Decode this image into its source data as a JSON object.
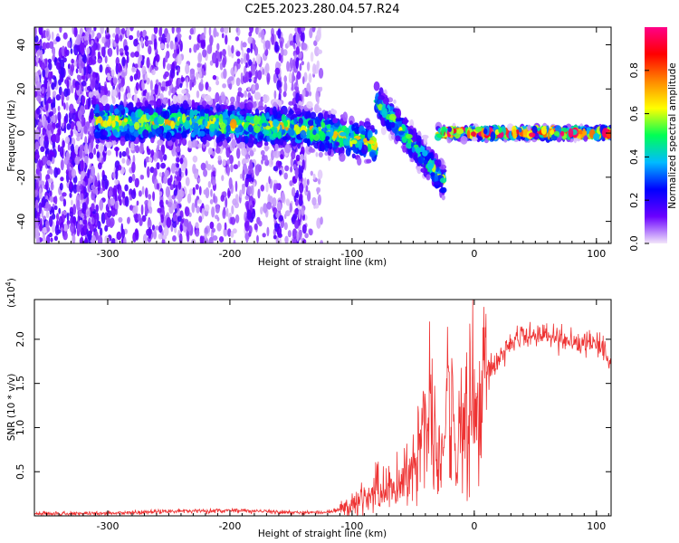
{
  "title": "C2E5.2023.280.04.57.R24",
  "chart_data": [
    {
      "type": "heatmap",
      "xlabel": "Height of straight line (km)",
      "ylabel": "Frequency (Hz)",
      "xlim": [
        -360,
        112
      ],
      "ylim": [
        -50,
        48
      ],
      "xticks": [
        -300,
        -200,
        -100,
        0,
        100
      ],
      "yticks": [
        -40,
        -20,
        0,
        20,
        40
      ],
      "colorbar": {
        "label": "Normalized spectral amplitude",
        "range": [
          0.0,
          1.0
        ],
        "ticks": [
          0.0,
          0.2,
          0.4,
          0.6,
          0.8
        ],
        "colors": [
          "#f2e6fa",
          "#6a00ff",
          "#0000ff",
          "#00bbff",
          "#00ff55",
          "#ffff00",
          "#ff8800",
          "#ff0000",
          "#ff0088"
        ]
      },
      "features": [
        {
          "x_range": [
            -360,
            -125
          ],
          "freq_range": [
            -50,
            48
          ],
          "amplitude": 0.15
        },
        {
          "x_range": [
            -310,
            -80
          ],
          "center_freq": [
            5,
            5,
            4,
            2,
            -5
          ],
          "amplitude": 0.45
        },
        {
          "x_range": [
            -80,
            -25
          ],
          "center_freq": [
            15,
            -22
          ],
          "amplitude": 0.4
        },
        {
          "x_range": [
            -30,
            112
          ],
          "center_freq": [
            0,
            0
          ],
          "amplitude": 0.8
        }
      ]
    },
    {
      "type": "line",
      "xlabel": "Height of straight line (km)",
      "ylabel": "SNR (10 * v/v)",
      "scale_label": "(x10",
      "scale_exp": "4",
      "scale_close": ")",
      "xlim": [
        -360,
        112
      ],
      "ylim": [
        0,
        2.45
      ],
      "xticks": [
        -300,
        -200,
        -100,
        0,
        100
      ],
      "yticks": [
        0.5,
        1.0,
        1.5,
        2.0
      ],
      "ytick_labels": [
        "0.5",
        "1.0",
        "1.5",
        "2.0"
      ],
      "series": [
        {
          "color": "#ee3333",
          "x": [
            -360,
            -300,
            -250,
            -200,
            -150,
            -120,
            -100,
            -90,
            -80,
            -70,
            -60,
            -50,
            -45,
            -40,
            -35,
            -30,
            -25,
            -20,
            -15,
            -10,
            -5,
            0,
            10,
            20,
            30,
            40,
            50,
            60,
            70,
            80,
            90,
            100,
            105,
            112
          ],
          "y": [
            0.02,
            0.03,
            0.05,
            0.06,
            0.04,
            0.04,
            0.1,
            0.2,
            0.3,
            0.3,
            0.4,
            0.5,
            0.75,
            1.2,
            1.3,
            0.6,
            0.7,
            1.6,
            0.4,
            1.2,
            1.3,
            1.35,
            1.6,
            1.8,
            1.95,
            2.05,
            2.05,
            2.05,
            2.0,
            1.95,
            1.95,
            1.95,
            1.9,
            1.75
          ]
        }
      ]
    }
  ]
}
